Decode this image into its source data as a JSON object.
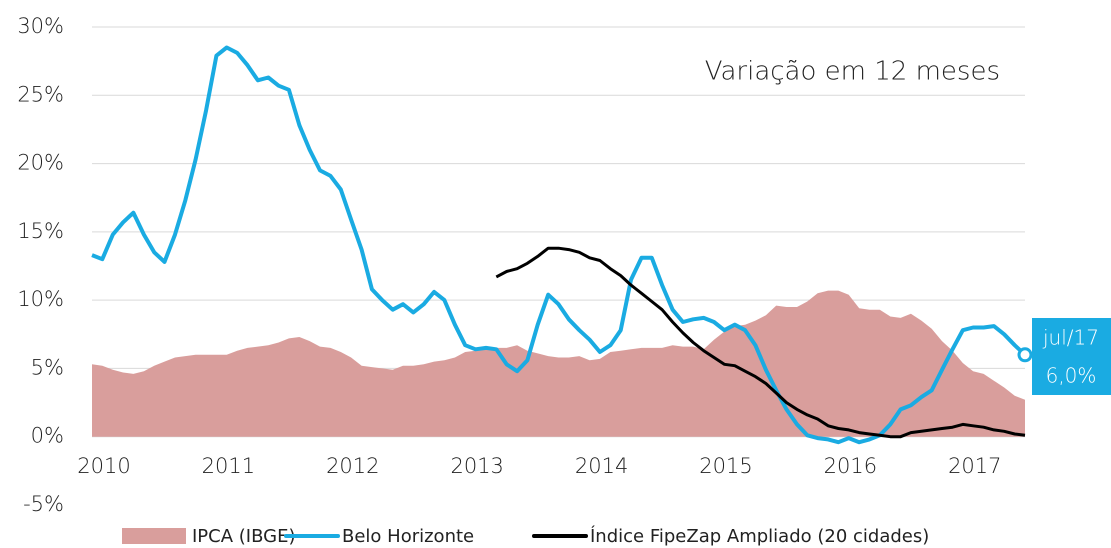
{
  "chart_data": {
    "type": "line",
    "annotation": "Variação em 12 meses",
    "x": [
      2010,
      2010.083,
      2010.167,
      2010.25,
      2010.333,
      2010.417,
      2010.5,
      2010.583,
      2010.667,
      2010.75,
      2010.833,
      2010.917,
      2011,
      2011.083,
      2011.167,
      2011.25,
      2011.333,
      2011.417,
      2011.5,
      2011.583,
      2011.667,
      2011.75,
      2011.833,
      2011.917,
      2012,
      2012.083,
      2012.167,
      2012.25,
      2012.333,
      2012.417,
      2012.5,
      2012.583,
      2012.667,
      2012.75,
      2012.833,
      2012.917,
      2013,
      2013.083,
      2013.167,
      2013.25,
      2013.333,
      2013.417,
      2013.5,
      2013.583,
      2013.667,
      2013.75,
      2013.833,
      2013.917,
      2014,
      2014.083,
      2014.167,
      2014.25,
      2014.333,
      2014.417,
      2014.5,
      2014.583,
      2014.667,
      2014.75,
      2014.833,
      2014.917,
      2015,
      2015.083,
      2015.167,
      2015.25,
      2015.333,
      2015.417,
      2015.5,
      2015.583,
      2015.667,
      2015.75,
      2015.833,
      2015.917,
      2016,
      2016.083,
      2016.167,
      2016.25,
      2016.333,
      2016.417,
      2016.5,
      2016.583,
      2016.667,
      2016.75,
      2016.833,
      2016.917,
      2017,
      2017.083,
      2017.167,
      2017.25,
      2017.333,
      2017.417,
      2017.5
    ],
    "series": [
      {
        "name": "IPCA (IBGE)",
        "kind": "area",
        "color": "#d99e9c",
        "values": [
          5.3,
          5.2,
          4.9,
          4.7,
          4.6,
          4.8,
          5.2,
          5.5,
          5.8,
          5.9,
          6.0,
          6.0,
          6.0,
          6.0,
          6.3,
          6.5,
          6.6,
          6.7,
          6.9,
          7.2,
          7.3,
          7.0,
          6.6,
          6.5,
          6.2,
          5.8,
          5.2,
          5.1,
          5.0,
          4.9,
          5.2,
          5.2,
          5.3,
          5.5,
          5.6,
          5.8,
          6.2,
          6.3,
          6.6,
          6.5,
          6.5,
          6.7,
          6.3,
          6.1,
          5.9,
          5.8,
          5.8,
          5.9,
          5.6,
          5.7,
          6.2,
          6.3,
          6.4,
          6.5,
          6.5,
          6.5,
          6.7,
          6.6,
          6.6,
          6.4,
          7.1,
          7.7,
          8.1,
          8.2,
          8.5,
          8.9,
          9.6,
          9.5,
          9.5,
          9.9,
          10.5,
          10.7,
          10.7,
          10.4,
          9.4,
          9.3,
          9.3,
          8.8,
          8.7,
          9.0,
          8.5,
          7.9,
          7.0,
          6.3,
          5.4,
          4.8,
          4.6,
          4.1,
          3.6,
          3.0,
          2.7
        ]
      },
      {
        "name": "Belo Horizonte",
        "kind": "line",
        "color": "#1aabe2",
        "values": [
          13.3,
          13.0,
          14.8,
          15.7,
          16.4,
          14.8,
          13.5,
          12.8,
          14.8,
          17.3,
          20.3,
          23.9,
          27.9,
          28.5,
          28.1,
          27.2,
          26.1,
          26.3,
          25.7,
          25.4,
          22.8,
          21.0,
          19.5,
          19.1,
          18.1,
          15.9,
          13.7,
          10.8,
          10.0,
          9.3,
          9.7,
          9.1,
          9.7,
          10.6,
          10.0,
          8.2,
          6.7,
          6.4,
          6.5,
          6.4,
          5.3,
          4.8,
          5.6,
          8.2,
          10.4,
          9.7,
          8.6,
          7.8,
          7.1,
          6.2,
          6.7,
          7.8,
          11.5,
          13.1,
          13.1,
          11.1,
          9.3,
          8.4,
          8.6,
          8.7,
          8.4,
          7.8,
          8.2,
          7.8,
          6.7,
          4.9,
          3.4,
          2.0,
          0.9,
          0.1,
          -0.1,
          -0.2,
          -0.4,
          -0.1,
          -0.4,
          -0.2,
          0.1,
          0.9,
          2.0,
          2.3,
          2.9,
          3.4,
          4.9,
          6.4,
          7.8,
          8.0,
          8.0,
          8.1,
          7.5,
          6.7,
          6.0
        ],
        "end_label": {
          "x_label": "jul/17",
          "value_label": "6,0%"
        }
      },
      {
        "name": "Índice FipeZap Ampliado (20 cidades)",
        "kind": "line",
        "color": "#000000",
        "values": [
          null,
          null,
          null,
          null,
          null,
          null,
          null,
          null,
          null,
          null,
          null,
          null,
          null,
          null,
          null,
          null,
          null,
          null,
          null,
          null,
          null,
          null,
          null,
          null,
          null,
          null,
          null,
          null,
          null,
          null,
          null,
          null,
          null,
          null,
          null,
          null,
          null,
          null,
          null,
          11.7,
          12.1,
          12.3,
          12.7,
          13.2,
          13.8,
          13.8,
          13.7,
          13.5,
          13.1,
          12.9,
          12.3,
          11.8,
          11.1,
          10.5,
          9.9,
          9.3,
          8.4,
          7.6,
          6.9,
          6.3,
          5.8,
          5.3,
          5.2,
          4.8,
          4.4,
          3.9,
          3.2,
          2.5,
          2.0,
          1.6,
          1.3,
          0.8,
          0.6,
          0.5,
          0.3,
          0.2,
          0.1,
          0.0,
          0.0,
          0.3,
          0.4,
          0.5,
          0.6,
          0.7,
          0.9,
          0.8,
          0.7,
          0.5,
          0.4,
          0.2,
          0.1
        ]
      }
    ],
    "xlim": [
      2010,
      2017.5
    ],
    "xticks": [
      2010,
      2011,
      2012,
      2013,
      2014,
      2015,
      2016,
      2017
    ],
    "ylim": [
      -5,
      30
    ],
    "yticks": [
      {
        "value": -5,
        "label": "-5%"
      },
      {
        "value": 0,
        "label": "0%"
      },
      {
        "value": 5,
        "label": "5%"
      },
      {
        "value": 10,
        "label": "10%"
      },
      {
        "value": 15,
        "label": "15%"
      },
      {
        "value": 20,
        "label": "20%"
      },
      {
        "value": 25,
        "label": "25%"
      },
      {
        "value": 30,
        "label": "30%"
      }
    ],
    "grid": true
  }
}
